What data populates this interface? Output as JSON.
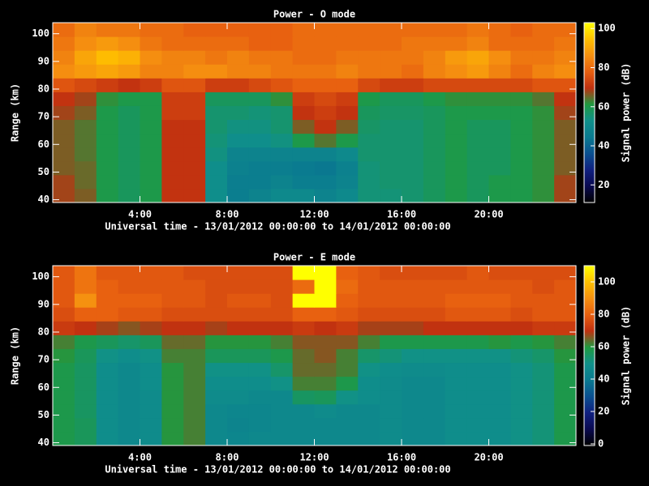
{
  "chart_data": [
    {
      "type": "heatmap",
      "title": "Power - O mode",
      "xlabel": "Universal time - 13/01/2012 00:00:00 to 14/01/2012 00:00:00",
      "ylabel": "Range (km)",
      "colorbar_label": "Signal power (dB)",
      "x": [
        0.5,
        1.5,
        2.5,
        3.5,
        4.5,
        5.5,
        6.5,
        7.5,
        8.5,
        9.5,
        10.5,
        11.5,
        12.5,
        13.5,
        14.5,
        15.5,
        16.5,
        17.5,
        18.5,
        19.5,
        20.5,
        21.5,
        22.5,
        23.5
      ],
      "y": [
        41.5,
        46.5,
        51.5,
        56.5,
        61.5,
        66.5,
        71.5,
        76.5,
        81.5,
        86.5,
        91.5,
        96.5,
        101.5
      ],
      "xlim": [
        0,
        24
      ],
      "ylim": [
        39,
        104
      ],
      "xticks": [
        {
          "value": 4,
          "label": "4:00"
        },
        {
          "value": 8,
          "label": "8:00"
        },
        {
          "value": 12,
          "label": "12:00"
        },
        {
          "value": 16,
          "label": "16:00"
        },
        {
          "value": 20,
          "label": "20:00"
        }
      ],
      "yticks": [
        40,
        50,
        60,
        70,
        80,
        90,
        100
      ],
      "zlim": [
        11,
        103
      ],
      "zticks": [
        20,
        40,
        60,
        80,
        100
      ],
      "colorscale": [
        "#000000",
        "#0a0a50",
        "#102080",
        "#0a5090",
        "#0a7a90",
        "#10908a",
        "#1f9a40",
        "#c03010",
        "#e86010",
        "#f59010",
        "#ffc000",
        "#ffff00"
      ],
      "z": [
        [
          68,
          66,
          60,
          58,
          60,
          70,
          70,
          52,
          46,
          48,
          50,
          50,
          48,
          50,
          55,
          55,
          56,
          58,
          60,
          58,
          60,
          60,
          62,
          68
        ],
        [
          68,
          65,
          60,
          58,
          60,
          70,
          70,
          52,
          46,
          46,
          48,
          46,
          46,
          48,
          55,
          56,
          56,
          58,
          60,
          58,
          60,
          60,
          62,
          68
        ],
        [
          66,
          65,
          60,
          58,
          60,
          70,
          70,
          52,
          47,
          46,
          46,
          45,
          44,
          47,
          55,
          56,
          56,
          58,
          60,
          58,
          58,
          60,
          62,
          66
        ],
        [
          66,
          64,
          60,
          58,
          60,
          70,
          70,
          54,
          48,
          48,
          48,
          48,
          48,
          50,
          56,
          56,
          56,
          58,
          60,
          58,
          58,
          60,
          62,
          66
        ],
        [
          66,
          64,
          60,
          58,
          60,
          70,
          70,
          55,
          52,
          52,
          54,
          60,
          64,
          60,
          56,
          56,
          56,
          58,
          60,
          58,
          58,
          60,
          62,
          66
        ],
        [
          66,
          64,
          60,
          58,
          60,
          70,
          70,
          56,
          54,
          54,
          56,
          66,
          70,
          66,
          57,
          56,
          56,
          58,
          60,
          58,
          58,
          60,
          62,
          66
        ],
        [
          68,
          66,
          60,
          58,
          60,
          72,
          72,
          56,
          56,
          55,
          56,
          70,
          72,
          70,
          58,
          57,
          57,
          58,
          60,
          60,
          60,
          60,
          62,
          68
        ],
        [
          70,
          68,
          62,
          60,
          60,
          72,
          72,
          58,
          58,
          58,
          62,
          72,
          74,
          72,
          60,
          58,
          58,
          60,
          62,
          62,
          62,
          62,
          64,
          70
        ],
        [
          76,
          74,
          72,
          70,
          72,
          76,
          76,
          72,
          72,
          74,
          76,
          78,
          78,
          78,
          74,
          72,
          72,
          74,
          74,
          74,
          74,
          74,
          76,
          76
        ],
        [
          86,
          88,
          90,
          88,
          84,
          84,
          86,
          86,
          84,
          84,
          82,
          82,
          82,
          84,
          82,
          82,
          80,
          84,
          86,
          88,
          84,
          80,
          84,
          86
        ],
        [
          84,
          90,
          94,
          92,
          86,
          84,
          84,
          82,
          84,
          82,
          82,
          80,
          80,
          82,
          82,
          82,
          82,
          84,
          88,
          90,
          86,
          82,
          82,
          84
        ],
        [
          82,
          86,
          88,
          86,
          82,
          80,
          80,
          80,
          80,
          78,
          78,
          80,
          80,
          80,
          80,
          80,
          82,
          82,
          82,
          84,
          80,
          80,
          80,
          82
        ],
        [
          80,
          84,
          82,
          82,
          80,
          80,
          78,
          78,
          78,
          78,
          78,
          80,
          80,
          80,
          80,
          80,
          80,
          80,
          80,
          82,
          80,
          78,
          80,
          80
        ]
      ]
    },
    {
      "type": "heatmap",
      "title": "Power - E mode",
      "xlabel": "Universal time - 13/01/2012 00:00:00 to 14/01/2012 00:00:00",
      "ylabel": "Range (km)",
      "colorbar_label": "Signal power (dB)",
      "x": [
        0.5,
        1.5,
        2.5,
        3.5,
        4.5,
        5.5,
        6.5,
        7.5,
        8.5,
        9.5,
        10.5,
        11.5,
        12.5,
        13.5,
        14.5,
        15.5,
        16.5,
        17.5,
        18.5,
        19.5,
        20.5,
        21.5,
        22.5,
        23.5
      ],
      "y": [
        41.5,
        46.5,
        51.5,
        56.5,
        61.5,
        66.5,
        71.5,
        76.5,
        81.5,
        86.5,
        91.5,
        96.5,
        101.5
      ],
      "xlim": [
        0,
        24
      ],
      "ylim": [
        39,
        104
      ],
      "xticks": [
        {
          "value": 4,
          "label": "4:00"
        },
        {
          "value": 8,
          "label": "8:00"
        },
        {
          "value": 12,
          "label": "12:00"
        },
        {
          "value": 16,
          "label": "16:00"
        },
        {
          "value": 20,
          "label": "20:00"
        }
      ],
      "yticks": [
        40,
        50,
        60,
        70,
        80,
        90,
        100
      ],
      "zlim": [
        -1,
        110
      ],
      "zticks": [
        0,
        20,
        40,
        60,
        80,
        100
      ],
      "colorscale": [
        "#000000",
        "#0a0a50",
        "#102080",
        "#0a5090",
        "#0a7a90",
        "#10908a",
        "#1f9a40",
        "#c03010",
        "#e86010",
        "#f59010",
        "#ffc000",
        "#ffff00"
      ],
      "z": [
        [
          58,
          56,
          48,
          46,
          47,
          60,
          62,
          46,
          45,
          46,
          46,
          46,
          46,
          46,
          46,
          47,
          46,
          46,
          48,
          48,
          48,
          50,
          52,
          58
        ],
        [
          58,
          56,
          48,
          46,
          47,
          60,
          62,
          46,
          44,
          45,
          46,
          46,
          46,
          46,
          46,
          47,
          46,
          46,
          48,
          48,
          48,
          50,
          52,
          58
        ],
        [
          58,
          55,
          48,
          46,
          47,
          60,
          62,
          46,
          45,
          45,
          46,
          46,
          47,
          46,
          46,
          47,
          46,
          46,
          48,
          48,
          48,
          50,
          52,
          58
        ],
        [
          58,
          55,
          48,
          46,
          47,
          60,
          62,
          47,
          47,
          46,
          46,
          55,
          56,
          50,
          48,
          47,
          46,
          46,
          48,
          48,
          48,
          50,
          52,
          58
        ],
        [
          58,
          55,
          48,
          46,
          48,
          60,
          62,
          48,
          48,
          48,
          50,
          62,
          62,
          58,
          48,
          47,
          46,
          46,
          48,
          48,
          48,
          50,
          52,
          58
        ],
        [
          58,
          55,
          48,
          46,
          48,
          60,
          62,
          50,
          50,
          50,
          54,
          64,
          64,
          62,
          50,
          48,
          47,
          47,
          48,
          48,
          48,
          50,
          52,
          58
        ],
        [
          60,
          56,
          50,
          48,
          50,
          62,
          62,
          56,
          56,
          56,
          58,
          64,
          66,
          62,
          54,
          52,
          50,
          50,
          50,
          50,
          50,
          52,
          54,
          60
        ],
        [
          62,
          58,
          56,
          54,
          56,
          64,
          64,
          60,
          60,
          60,
          62,
          66,
          66,
          66,
          62,
          58,
          58,
          58,
          58,
          58,
          60,
          58,
          60,
          62
        ],
        [
          72,
          70,
          68,
          66,
          68,
          70,
          70,
          68,
          70,
          70,
          70,
          72,
          70,
          72,
          68,
          68,
          68,
          70,
          70,
          70,
          70,
          70,
          72,
          72
        ],
        [
          76,
          80,
          80,
          78,
          78,
          76,
          76,
          76,
          76,
          76,
          76,
          80,
          80,
          78,
          76,
          76,
          76,
          76,
          78,
          78,
          78,
          76,
          78,
          78
        ],
        [
          78,
          90,
          80,
          80,
          80,
          78,
          78,
          76,
          78,
          78,
          76,
          110,
          110,
          80,
          78,
          78,
          78,
          78,
          80,
          80,
          80,
          78,
          78,
          78
        ],
        [
          78,
          84,
          80,
          78,
          78,
          78,
          78,
          76,
          76,
          76,
          76,
          82,
          110,
          82,
          78,
          78,
          78,
          78,
          78,
          78,
          78,
          78,
          76,
          78
        ],
        [
          78,
          84,
          78,
          78,
          78,
          78,
          76,
          76,
          76,
          76,
          76,
          110,
          110,
          80,
          78,
          76,
          76,
          76,
          76,
          78,
          76,
          76,
          76,
          76
        ]
      ]
    }
  ]
}
